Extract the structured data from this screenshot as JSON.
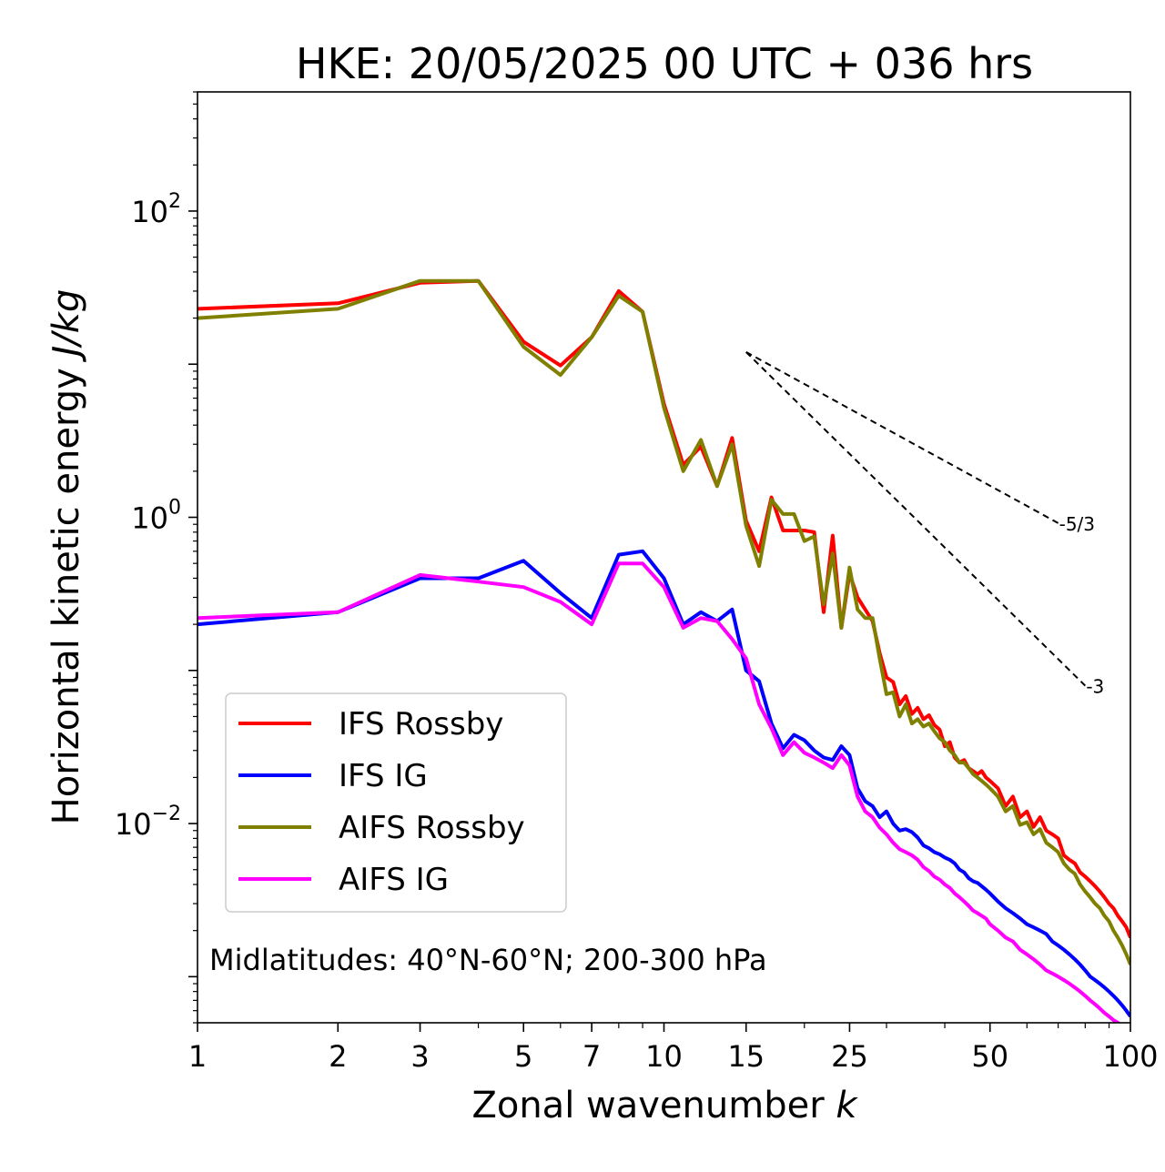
{
  "chart_data": {
    "type": "line",
    "title": "HKE: 20/05/2025 00 UTC + 036 hrs",
    "xlabel": "Zonal wavenumber ",
    "xlabel_italic": "k",
    "ylabel": "Horizontal kinetic energy ",
    "ylabel_italic": "J/kg",
    "xscale": "log",
    "yscale": "log",
    "xlim": [
      1,
      100
    ],
    "ylim": [
      0.0005,
      600
    ],
    "xticks": [
      {
        "value": 1,
        "label": "1"
      },
      {
        "value": 2,
        "label": "2"
      },
      {
        "value": 3,
        "label": "3"
      },
      {
        "value": 5,
        "label": "5"
      },
      {
        "value": 7,
        "label": "7"
      },
      {
        "value": 10,
        "label": "10"
      },
      {
        "value": 15,
        "label": "15"
      },
      {
        "value": 25,
        "label": "25"
      },
      {
        "value": 50,
        "label": "50"
      },
      {
        "value": 100,
        "label": "100"
      }
    ],
    "yticks": [
      {
        "value": 0.01,
        "base": "10",
        "exp": "−2"
      },
      {
        "value": 1,
        "base": "10",
        "exp": "0"
      },
      {
        "value": 100,
        "base": "10",
        "exp": "2"
      }
    ],
    "grid": false,
    "legend_position": "lower-left",
    "annotation": "Midlatitudes: 40°N-60°N; 200-300 hPa",
    "reference_lines": [
      {
        "label": "-5/3",
        "x": [
          15,
          70
        ],
        "y": [
          12.0,
          0.917
        ]
      },
      {
        "label": "-3",
        "x": [
          15,
          80
        ],
        "y": [
          12.0,
          0.0795
        ]
      }
    ],
    "series": [
      {
        "name": "IFS Rossby",
        "color": "#ff0000",
        "x": [
          1,
          2,
          3,
          4,
          5,
          6,
          7,
          8,
          9,
          10,
          11,
          12,
          13,
          14,
          15,
          16,
          17,
          18,
          19,
          20,
          21,
          22,
          23,
          24,
          25,
          26,
          27,
          28,
          29,
          30,
          31,
          32,
          33,
          34,
          35,
          36,
          37,
          38,
          39,
          40,
          41,
          42,
          43,
          44,
          45,
          46,
          47,
          48,
          49,
          50,
          52,
          54,
          56,
          58,
          60,
          62,
          64,
          66,
          68,
          70,
          72,
          74,
          76,
          78,
          80,
          82,
          84,
          86,
          88,
          90,
          92,
          94,
          96,
          98,
          100
        ],
        "y": [
          23,
          25,
          34,
          35,
          14,
          9.8,
          15,
          30,
          22,
          5.5,
          2.2,
          2.9,
          1.6,
          3.3,
          0.95,
          0.6,
          1.35,
          0.82,
          0.82,
          0.82,
          0.8,
          0.24,
          0.76,
          0.19,
          0.43,
          0.3,
          0.25,
          0.21,
          0.13,
          0.09,
          0.084,
          0.06,
          0.068,
          0.052,
          0.057,
          0.048,
          0.051,
          0.044,
          0.041,
          0.032,
          0.034,
          0.027,
          0.025,
          0.026,
          0.023,
          0.022,
          0.021,
          0.022,
          0.02,
          0.019,
          0.017,
          0.013,
          0.015,
          0.011,
          0.012,
          0.0095,
          0.011,
          0.009,
          0.0085,
          0.008,
          0.0062,
          0.0058,
          0.0055,
          0.0048,
          0.0045,
          0.0042,
          0.0039,
          0.0036,
          0.0033,
          0.003,
          0.0028,
          0.0025,
          0.0023,
          0.0021,
          0.0018
        ]
      },
      {
        "name": "IFS IG",
        "color": "#0000ff",
        "x": [
          1,
          2,
          3,
          4,
          5,
          6,
          7,
          8,
          9,
          10,
          11,
          12,
          13,
          14,
          15,
          16,
          17,
          18,
          19,
          20,
          21,
          22,
          23,
          24,
          25,
          26,
          27,
          28,
          29,
          30,
          31,
          32,
          33,
          34,
          35,
          36,
          37,
          38,
          39,
          40,
          41,
          42,
          43,
          44,
          45,
          46,
          47,
          48,
          49,
          50,
          52,
          54,
          56,
          58,
          60,
          62,
          64,
          66,
          68,
          70,
          72,
          74,
          76,
          78,
          80,
          82,
          84,
          86,
          88,
          90,
          92,
          94,
          96,
          98,
          100
        ],
        "y": [
          0.2,
          0.24,
          0.4,
          0.4,
          0.52,
          0.32,
          0.22,
          0.57,
          0.6,
          0.4,
          0.2,
          0.24,
          0.21,
          0.25,
          0.1,
          0.085,
          0.045,
          0.031,
          0.038,
          0.035,
          0.03,
          0.027,
          0.026,
          0.032,
          0.028,
          0.017,
          0.014,
          0.013,
          0.011,
          0.012,
          0.01,
          0.009,
          0.0092,
          0.0088,
          0.0081,
          0.0072,
          0.0069,
          0.0065,
          0.0063,
          0.006,
          0.0058,
          0.0055,
          0.005,
          0.0048,
          0.0044,
          0.0042,
          0.0041,
          0.0039,
          0.0037,
          0.0035,
          0.0031,
          0.0028,
          0.0026,
          0.0024,
          0.0022,
          0.0021,
          0.002,
          0.0019,
          0.0017,
          0.0016,
          0.0015,
          0.0014,
          0.0013,
          0.0012,
          0.0011,
          0.001,
          0.00095,
          0.0009,
          0.00085,
          0.0008,
          0.00075,
          0.0007,
          0.00065,
          0.0006,
          0.00055
        ]
      },
      {
        "name": "AIFS Rossby",
        "color": "#808000",
        "x": [
          1,
          2,
          3,
          4,
          5,
          6,
          7,
          8,
          9,
          10,
          11,
          12,
          13,
          14,
          15,
          16,
          17,
          18,
          19,
          20,
          21,
          22,
          23,
          24,
          25,
          26,
          27,
          28,
          29,
          30,
          31,
          32,
          33,
          34,
          35,
          36,
          37,
          38,
          39,
          40,
          41,
          42,
          43,
          44,
          45,
          46,
          47,
          48,
          49,
          50,
          52,
          54,
          56,
          58,
          60,
          62,
          64,
          66,
          68,
          70,
          72,
          74,
          76,
          78,
          80,
          82,
          84,
          86,
          88,
          90,
          92,
          94,
          96,
          98,
          100
        ],
        "y": [
          20,
          23,
          35,
          35,
          13,
          8.5,
          15,
          28,
          22,
          5.2,
          2.0,
          3.2,
          1.6,
          3.0,
          0.88,
          0.48,
          1.3,
          1.05,
          1.05,
          0.7,
          0.75,
          0.27,
          0.58,
          0.19,
          0.47,
          0.25,
          0.22,
          0.22,
          0.12,
          0.07,
          0.072,
          0.05,
          0.06,
          0.045,
          0.048,
          0.043,
          0.045,
          0.04,
          0.036,
          0.034,
          0.03,
          0.028,
          0.025,
          0.025,
          0.023,
          0.021,
          0.02,
          0.019,
          0.018,
          0.017,
          0.015,
          0.012,
          0.013,
          0.0098,
          0.0102,
          0.0085,
          0.0092,
          0.0075,
          0.007,
          0.0065,
          0.0055,
          0.005,
          0.0047,
          0.004,
          0.0036,
          0.0033,
          0.003,
          0.0028,
          0.0025,
          0.0023,
          0.002,
          0.0018,
          0.0016,
          0.0014,
          0.0012
        ]
      },
      {
        "name": "AIFS IG",
        "color": "#ff00ff",
        "x": [
          1,
          2,
          3,
          4,
          5,
          6,
          7,
          8,
          9,
          10,
          11,
          12,
          13,
          14,
          15,
          16,
          17,
          18,
          19,
          20,
          21,
          22,
          23,
          24,
          25,
          26,
          27,
          28,
          29,
          30,
          31,
          32,
          33,
          34,
          35,
          36,
          37,
          38,
          39,
          40,
          41,
          42,
          43,
          44,
          45,
          46,
          47,
          48,
          49,
          50,
          52,
          54,
          56,
          58,
          60,
          62,
          64,
          66,
          68,
          70,
          72,
          74,
          76,
          78,
          80,
          82,
          84,
          86,
          88,
          90,
          92,
          94,
          96,
          98,
          100
        ],
        "y": [
          0.22,
          0.24,
          0.42,
          0.38,
          0.35,
          0.28,
          0.2,
          0.5,
          0.5,
          0.35,
          0.19,
          0.22,
          0.21,
          0.16,
          0.12,
          0.06,
          0.042,
          0.028,
          0.034,
          0.029,
          0.027,
          0.025,
          0.023,
          0.028,
          0.024,
          0.015,
          0.012,
          0.011,
          0.0094,
          0.0085,
          0.0075,
          0.0068,
          0.0065,
          0.0062,
          0.0058,
          0.0052,
          0.0049,
          0.0045,
          0.0043,
          0.004,
          0.0038,
          0.0035,
          0.0033,
          0.0031,
          0.0029,
          0.0027,
          0.0026,
          0.0025,
          0.0024,
          0.0022,
          0.002,
          0.0018,
          0.0017,
          0.0015,
          0.0014,
          0.0013,
          0.0012,
          0.0011,
          0.00105,
          0.001,
          0.00095,
          0.0009,
          0.00085,
          0.0008,
          0.00075,
          0.0007,
          0.00066,
          0.00062,
          0.00058,
          0.00055,
          0.00052,
          0.0005,
          0.00048,
          0.00046,
          0.00044
        ]
      }
    ]
  }
}
